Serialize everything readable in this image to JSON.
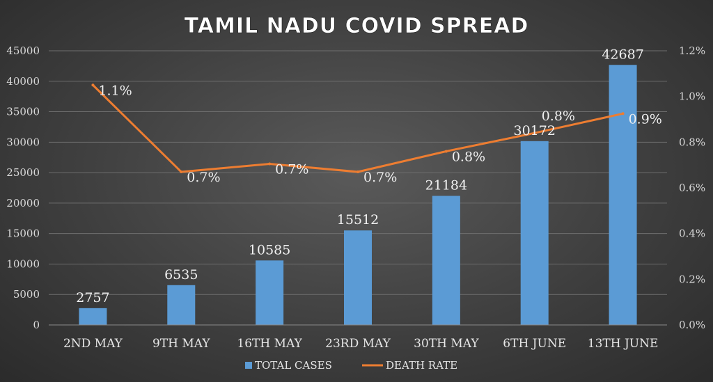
{
  "chart_data": {
    "type": "bar",
    "title": "TAMIL NADU COVID SPREAD",
    "categories": [
      "2ND MAY",
      "9TH MAY",
      "16TH MAY",
      "23RD MAY",
      "30TH MAY",
      "6TH JUNE",
      "13TH JUNE"
    ],
    "series": [
      {
        "name": "TOTAL CASES",
        "type": "bar",
        "axis": "left",
        "values": [
          2757,
          6535,
          10585,
          15512,
          21184,
          30172,
          42687
        ],
        "labels": [
          "2757",
          "6535",
          "10585",
          "15512",
          "21184",
          "30172",
          "42687"
        ],
        "color": "#5b9bd5"
      },
      {
        "name": "DEATH RATE",
        "type": "line",
        "axis": "right",
        "values": [
          1.05,
          0.67,
          0.705,
          0.67,
          0.76,
          0.84,
          0.925
        ],
        "labels": [
          "1.1%",
          "0.7%",
          "0.7%",
          "0.7%",
          "0.8%",
          "0.8%",
          "0.9%"
        ],
        "color": "#ed7d31"
      }
    ],
    "ylim_left": [
      0,
      45000
    ],
    "yticks_left": [
      "0",
      "5000",
      "10000",
      "15000",
      "20000",
      "25000",
      "30000",
      "35000",
      "40000",
      "45000"
    ],
    "ylim_right": [
      0,
      1.2
    ],
    "yticks_right": [
      "0.0%",
      "0.2%",
      "0.4%",
      "0.6%",
      "0.8%",
      "1.0%",
      "1.2%"
    ],
    "grid": true,
    "legend_position": "bottom"
  }
}
